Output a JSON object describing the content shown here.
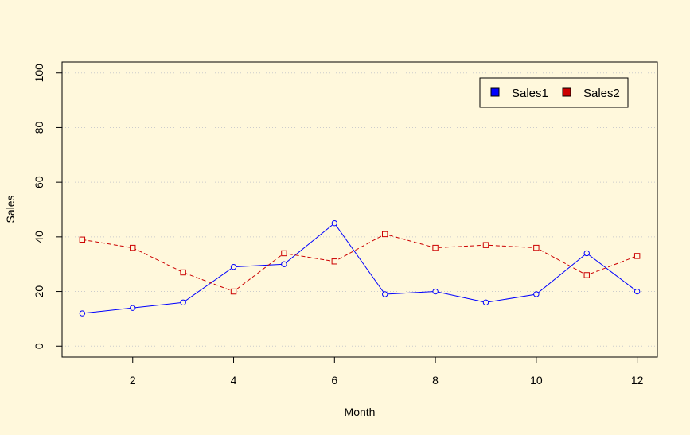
{
  "chart_data": {
    "type": "line",
    "title": "",
    "xlabel": "Month",
    "ylabel": "Sales",
    "x": [
      1,
      2,
      3,
      4,
      5,
      6,
      7,
      8,
      9,
      10,
      11,
      12
    ],
    "xlim": [
      0.6,
      12.4
    ],
    "ylim": [
      -4,
      104
    ],
    "xticks": [
      2,
      4,
      6,
      8,
      10,
      12
    ],
    "yticks": [
      0,
      20,
      40,
      60,
      80,
      100
    ],
    "grid": "horizontal-dotted",
    "legend_position": "top-right",
    "series": [
      {
        "name": "Sales1",
        "values": [
          12,
          14,
          16,
          29,
          30,
          45,
          19,
          20,
          16,
          19,
          34,
          20
        ],
        "color": "#0000ff",
        "line_style": "solid",
        "marker": "circle"
      },
      {
        "name": "Sales2",
        "values": [
          39,
          36,
          27,
          20,
          34,
          31,
          41,
          36,
          37,
          36,
          26,
          33
        ],
        "color": "#cc0000",
        "line_style": "dashed",
        "marker": "square"
      }
    ],
    "background_color": "#fff8dc"
  }
}
